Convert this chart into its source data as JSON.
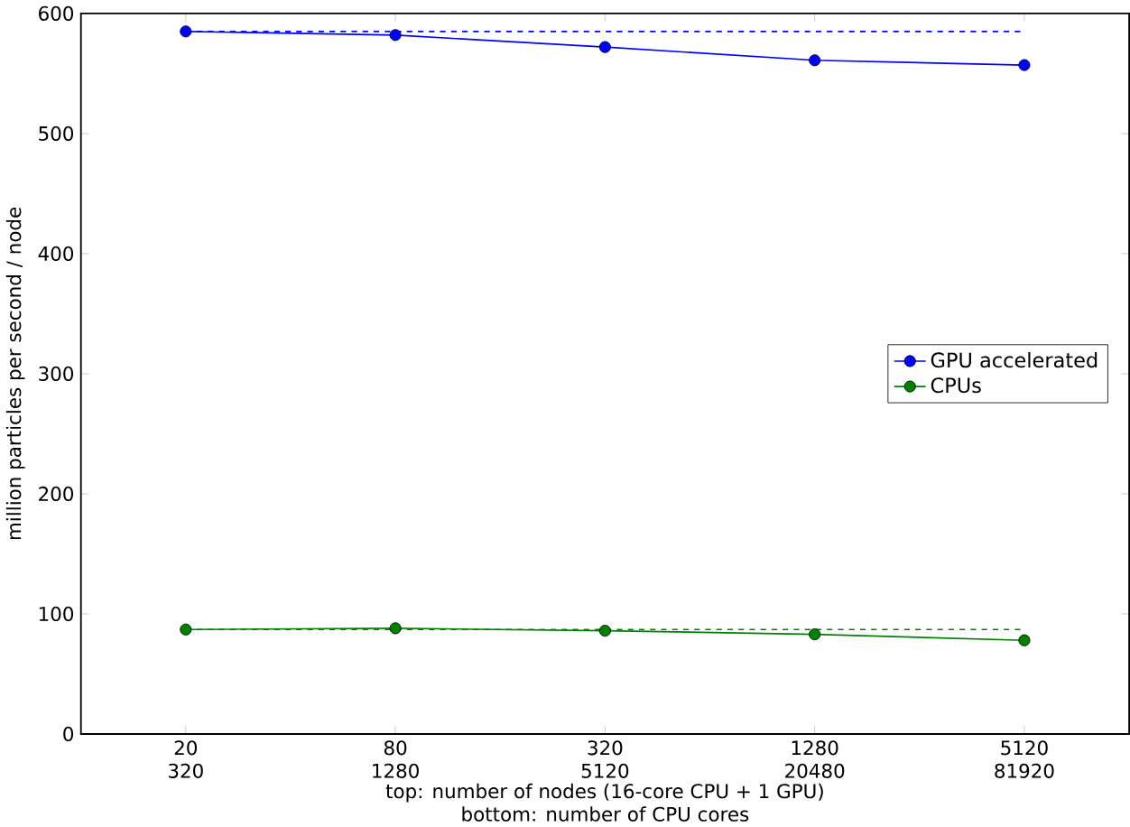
{
  "chart_data": {
    "type": "line",
    "ylabel": "million particles per second / node",
    "xlabel": "top: number of nodes (16-core CPU + 1 GPU)",
    "annotations": [
      "bottom: number of CPU cores"
    ],
    "categories": [
      "20\n320",
      "80\n1280",
      "320\n5120",
      "1280\n20480",
      "5120\n81920"
    ],
    "ylim": [
      0,
      600
    ],
    "yticks": [
      0,
      100,
      200,
      300,
      400,
      500,
      600
    ],
    "grid": false,
    "legend": "right",
    "marker": "circle",
    "series": [
      {
        "name": "GPU accelerated",
        "color": "#0000ff",
        "values": [
          585,
          582,
          572,
          561,
          557
        ]
      },
      {
        "name": "CPUs",
        "color": "#008000",
        "values": [
          87,
          88,
          86,
          83,
          78
        ]
      },
      {
        "color": "#0000ff",
        "values": [
          585,
          585,
          585,
          585,
          585
        ],
        "line_style": "dashed",
        "marker": "none"
      },
      {
        "color": "#008000",
        "values": [
          87,
          87,
          87,
          87,
          87
        ],
        "line_style": "dashed",
        "marker": "none"
      }
    ]
  }
}
